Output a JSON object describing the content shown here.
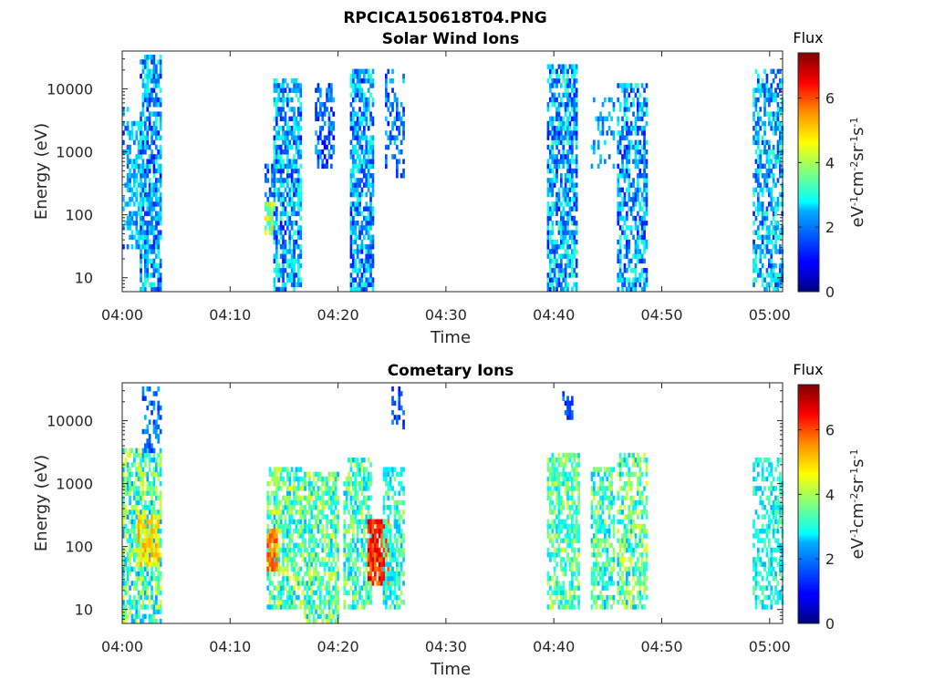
{
  "figure_title": "RPCICA150618T04.PNG",
  "chart_data": [
    {
      "type": "heatmap",
      "title": "Solar Wind Ions",
      "xlabel": "Time",
      "ylabel": "Energy (eV)",
      "x_ticks": [
        "04:00",
        "04:10",
        "04:20",
        "04:30",
        "04:40",
        "04:50",
        "05:00"
      ],
      "x_tick_minutes": [
        0,
        10,
        20,
        30,
        40,
        50,
        60
      ],
      "xlim_minutes": [
        0,
        61.2
      ],
      "y_scale": "log",
      "y_ticks": [
        "10",
        "100",
        "1000",
        "10000"
      ],
      "y_tick_values": [
        10,
        100,
        1000,
        10000
      ],
      "ylim": [
        6,
        40000
      ],
      "colorbar": {
        "title": "Flux",
        "label": "eV-1cm-2sr-1s-1",
        "ticks": [
          "0",
          "2",
          "4",
          "6"
        ],
        "tick_values": [
          0,
          2,
          4,
          6
        ],
        "range": [
          0,
          7.4
        ],
        "colormap": "jet"
      },
      "bursts": [
        {
          "t_start": 0.0,
          "t_end": 0.6,
          "e_low": 30,
          "e_high": 5000,
          "flux_low": 1.2,
          "flux_high": 2.8,
          "density": 0.35
        },
        {
          "t_start": 0.5,
          "t_end": 2.0,
          "e_low": 30,
          "e_high": 3000,
          "flux_low": 1.5,
          "flux_high": 3.0,
          "density": 0.55
        },
        {
          "t_start": 1.8,
          "t_end": 3.6,
          "e_low": 6,
          "e_high": 35000,
          "flux_low": 1.0,
          "flux_high": 3.2,
          "density": 0.7
        },
        {
          "t_start": 13.3,
          "t_end": 14.2,
          "e_low": 50,
          "e_high": 150,
          "flux_low": 3.0,
          "flux_high": 5.2,
          "density": 0.8
        },
        {
          "t_start": 13.3,
          "t_end": 14.0,
          "e_low": 150,
          "e_high": 800,
          "flux_low": 1.0,
          "flux_high": 2.4,
          "density": 0.5
        },
        {
          "t_start": 14.0,
          "t_end": 16.5,
          "e_low": 6,
          "e_high": 14000,
          "flux_low": 1.0,
          "flux_high": 3.3,
          "density": 0.65
        },
        {
          "t_start": 18.0,
          "t_end": 19.6,
          "e_low": 500,
          "e_high": 12000,
          "flux_low": 0.8,
          "flux_high": 2.4,
          "density": 0.45
        },
        {
          "t_start": 21.2,
          "t_end": 23.2,
          "e_low": 6,
          "e_high": 20000,
          "flux_low": 1.0,
          "flux_high": 3.2,
          "density": 0.7
        },
        {
          "t_start": 24.5,
          "t_end": 26.0,
          "e_low": 400,
          "e_high": 20000,
          "flux_low": 1.0,
          "flux_high": 2.6,
          "density": 0.4
        },
        {
          "t_start": 39.5,
          "t_end": 42.0,
          "e_low": 6,
          "e_high": 25000,
          "flux_low": 1.0,
          "flux_high": 3.4,
          "density": 0.7
        },
        {
          "t_start": 43.5,
          "t_end": 45.5,
          "e_low": 500,
          "e_high": 8000,
          "flux_low": 1.5,
          "flux_high": 2.8,
          "density": 0.25
        },
        {
          "t_start": 46.0,
          "t_end": 48.5,
          "e_low": 6,
          "e_high": 12000,
          "flux_low": 1.0,
          "flux_high": 3.2,
          "density": 0.6
        },
        {
          "t_start": 58.5,
          "t_end": 61.2,
          "e_low": 6,
          "e_high": 20000,
          "flux_low": 1.2,
          "flux_high": 3.4,
          "density": 0.55
        }
      ]
    },
    {
      "type": "heatmap",
      "title": "Cometary Ions",
      "xlabel": "Time",
      "ylabel": "Energy (eV)",
      "x_ticks": [
        "04:00",
        "04:10",
        "04:20",
        "04:30",
        "04:40",
        "04:50",
        "05:00"
      ],
      "x_tick_minutes": [
        0,
        10,
        20,
        30,
        40,
        50,
        60
      ],
      "xlim_minutes": [
        0,
        61.2
      ],
      "y_scale": "log",
      "y_ticks": [
        "10",
        "100",
        "1000",
        "10000"
      ],
      "y_tick_values": [
        10,
        100,
        1000,
        10000
      ],
      "ylim": [
        6,
        40000
      ],
      "colorbar": {
        "title": "Flux",
        "label": "eV-1cm-2sr-1s-1",
        "ticks": [
          "0",
          "2",
          "4",
          "6"
        ],
        "tick_values": [
          0,
          2,
          4,
          6
        ],
        "range": [
          0,
          7.4
        ],
        "colormap": "jet"
      },
      "bursts": [
        {
          "t_start": 0.0,
          "t_end": 3.6,
          "e_low": 6,
          "e_high": 3500,
          "flux_low": 2.0,
          "flux_high": 4.6,
          "density": 0.7
        },
        {
          "t_start": 1.5,
          "t_end": 3.3,
          "e_low": 50,
          "e_high": 300,
          "flux_low": 4.0,
          "flux_high": 5.4,
          "density": 0.75
        },
        {
          "t_start": 2.0,
          "t_end": 3.5,
          "e_low": 3000,
          "e_high": 35000,
          "flux_low": 1.0,
          "flux_high": 2.4,
          "density": 0.3
        },
        {
          "t_start": 13.5,
          "t_end": 16.8,
          "e_low": 10,
          "e_high": 2000,
          "flux_low": 2.2,
          "flux_high": 4.6,
          "density": 0.7
        },
        {
          "t_start": 13.5,
          "t_end": 14.4,
          "e_low": 40,
          "e_high": 200,
          "flux_low": 5.0,
          "flux_high": 6.2,
          "density": 0.85
        },
        {
          "t_start": 17.0,
          "t_end": 20.0,
          "e_low": 6,
          "e_high": 1500,
          "flux_low": 2.2,
          "flux_high": 4.5,
          "density": 0.7
        },
        {
          "t_start": 20.5,
          "t_end": 23.0,
          "e_low": 10,
          "e_high": 2500,
          "flux_low": 2.2,
          "flux_high": 4.4,
          "density": 0.7
        },
        {
          "t_start": 22.8,
          "t_end": 24.6,
          "e_low": 25,
          "e_high": 250,
          "flux_low": 5.5,
          "flux_high": 6.9,
          "density": 0.9
        },
        {
          "t_start": 24.2,
          "t_end": 26.0,
          "e_low": 10,
          "e_high": 2000,
          "flux_low": 2.2,
          "flux_high": 4.0,
          "density": 0.6
        },
        {
          "t_start": 25.0,
          "t_end": 26.0,
          "e_low": 8000,
          "e_high": 35000,
          "flux_low": 1.0,
          "flux_high": 2.0,
          "density": 0.35
        },
        {
          "t_start": 39.5,
          "t_end": 42.3,
          "e_low": 10,
          "e_high": 3000,
          "flux_low": 2.4,
          "flux_high": 4.4,
          "density": 0.65
        },
        {
          "t_start": 40.8,
          "t_end": 41.6,
          "e_low": 10000,
          "e_high": 30000,
          "flux_low": 1.0,
          "flux_high": 2.0,
          "density": 0.45
        },
        {
          "t_start": 43.5,
          "t_end": 45.5,
          "e_low": 10,
          "e_high": 2000,
          "flux_low": 2.2,
          "flux_high": 4.3,
          "density": 0.6
        },
        {
          "t_start": 46.0,
          "t_end": 48.5,
          "e_low": 10,
          "e_high": 3000,
          "flux_low": 2.2,
          "flux_high": 4.6,
          "density": 0.65
        },
        {
          "t_start": 58.5,
          "t_end": 61.2,
          "e_low": 10,
          "e_high": 2500,
          "flux_low": 2.2,
          "flux_high": 3.6,
          "density": 0.5
        }
      ]
    }
  ]
}
